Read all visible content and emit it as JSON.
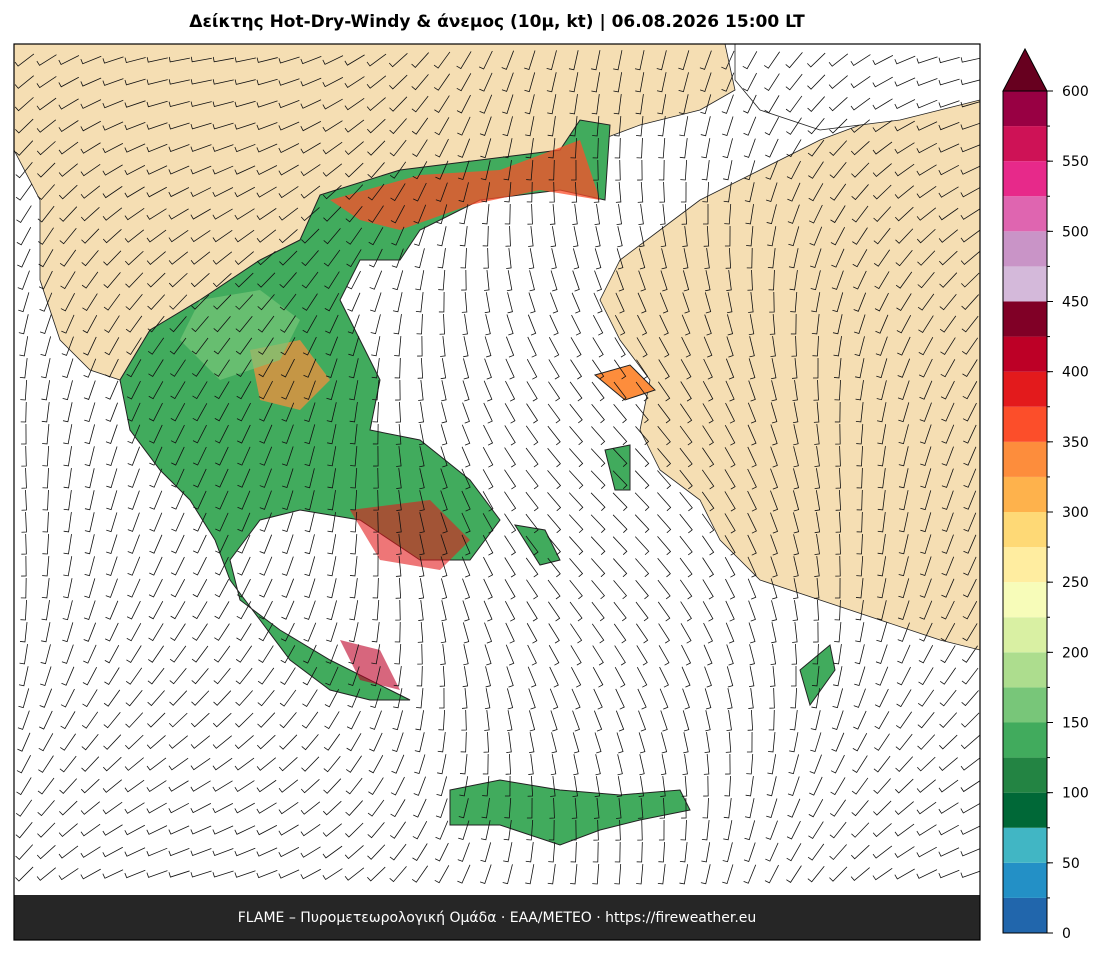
{
  "title": "Δείκτης Hot-Dry-Windy & άνεμος (10μ, kt)  |  06.08.2026 15:00 LT",
  "footer": "FLAME – Πυρομετεωρολογική Ομάδα · ΕΑΑ/METEO · https://fireweather.eu",
  "colorbar": {
    "levels": [
      0,
      25,
      50,
      75,
      100,
      125,
      150,
      175,
      200,
      225,
      250,
      275,
      300,
      325,
      350,
      375,
      400,
      425,
      450,
      475,
      500,
      525,
      550,
      575,
      600
    ],
    "colors": [
      "#2166ac",
      "#2390c6",
      "#41b6c4",
      "#006837",
      "#238443",
      "#41ab5d",
      "#78c679",
      "#addd8e",
      "#d9f0a3",
      "#f7fcb9",
      "#ffeda0",
      "#fed976",
      "#feb24c",
      "#fd8d3c",
      "#fc4e2a",
      "#e31a1c",
      "#bd0026",
      "#800026",
      "#d4b9da",
      "#c994c7",
      "#df65b0",
      "#e7298a",
      "#ce1256",
      "#980043"
    ],
    "extend_color": "#67001f",
    "ticks": [
      0,
      50,
      100,
      150,
      200,
      250,
      300,
      350,
      400,
      450,
      500,
      550,
      600
    ]
  }
}
